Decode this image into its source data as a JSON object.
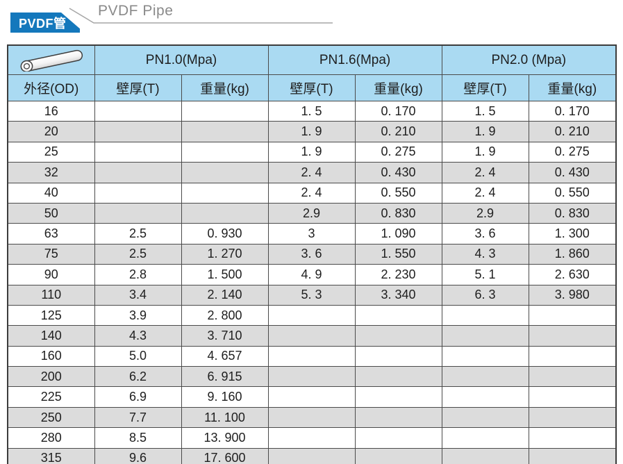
{
  "header": {
    "badge_label": "PVDF管",
    "title": "PVDF Pipe"
  },
  "colors": {
    "badge_blue": "#1478bc",
    "header_blue": "#aadaf2",
    "alt_row_gray": "#dcdcdc",
    "border_dark": "#3c3c3c",
    "grid_line": "#4a4a4a",
    "title_gray": "#8a8a8a",
    "text_dark": "#1e1e1e"
  },
  "table": {
    "pipe_icon": "pipe-illustration",
    "col_groups": [
      {
        "label": "PN1.0(Mpa)"
      },
      {
        "label": "PN1.6(Mpa)"
      },
      {
        "label": "PN2.0 (Mpa)"
      }
    ],
    "sub_headers": {
      "od": "外径(OD)",
      "wall": "壁厚(T)",
      "weight": "重量(kg)"
    },
    "rows": [
      {
        "od": "16",
        "cells": [
          "",
          "",
          "1. 5",
          "0. 170",
          "1. 5",
          "0. 170"
        ]
      },
      {
        "od": "20",
        "cells": [
          "",
          "",
          "1. 9",
          "0. 210",
          "1. 9",
          "0. 210"
        ]
      },
      {
        "od": "25",
        "cells": [
          "",
          "",
          "1. 9",
          "0. 275",
          "1. 9",
          "0. 275"
        ]
      },
      {
        "od": "32",
        "cells": [
          "",
          "",
          "2. 4",
          "0. 430",
          "2. 4",
          "0. 430"
        ]
      },
      {
        "od": "40",
        "cells": [
          "",
          "",
          "2. 4",
          "0. 550",
          "2. 4",
          "0. 550"
        ]
      },
      {
        "od": "50",
        "cells": [
          "",
          "",
          "2.9",
          "0. 830",
          "2.9",
          "0. 830"
        ]
      },
      {
        "od": "63",
        "cells": [
          "2.5",
          "0. 930",
          "3",
          "1. 090",
          "3. 6",
          "1. 300"
        ]
      },
      {
        "od": "75",
        "cells": [
          "2.5",
          "1. 270",
          "3. 6",
          "1. 550",
          "4. 3",
          "1. 860"
        ]
      },
      {
        "od": "90",
        "cells": [
          "2.8",
          "1. 500",
          "4. 9",
          "2. 230",
          "5. 1",
          "2. 630"
        ]
      },
      {
        "od": "110",
        "cells": [
          "3.4",
          "2. 140",
          "5. 3",
          "3. 340",
          "6. 3",
          "3. 980"
        ]
      },
      {
        "od": "125",
        "cells": [
          "3.9",
          "2. 800",
          "",
          "",
          "",
          ""
        ]
      },
      {
        "od": "140",
        "cells": [
          "4.3",
          "3. 710",
          "",
          "",
          "",
          ""
        ]
      },
      {
        "od": "160",
        "cells": [
          "5.0",
          "4. 657",
          "",
          "",
          "",
          ""
        ]
      },
      {
        "od": "200",
        "cells": [
          "6.2",
          "6. 915",
          "",
          "",
          "",
          ""
        ]
      },
      {
        "od": "225",
        "cells": [
          "6.9",
          "9. 160",
          "",
          "",
          "",
          ""
        ]
      },
      {
        "od": "250",
        "cells": [
          "7.7",
          "11. 100",
          "",
          "",
          "",
          ""
        ]
      },
      {
        "od": "280",
        "cells": [
          "8.5",
          "13. 900",
          "",
          "",
          "",
          ""
        ]
      },
      {
        "od": "315",
        "cells": [
          "9.6",
          "17. 600",
          "",
          "",
          "",
          ""
        ]
      }
    ]
  }
}
